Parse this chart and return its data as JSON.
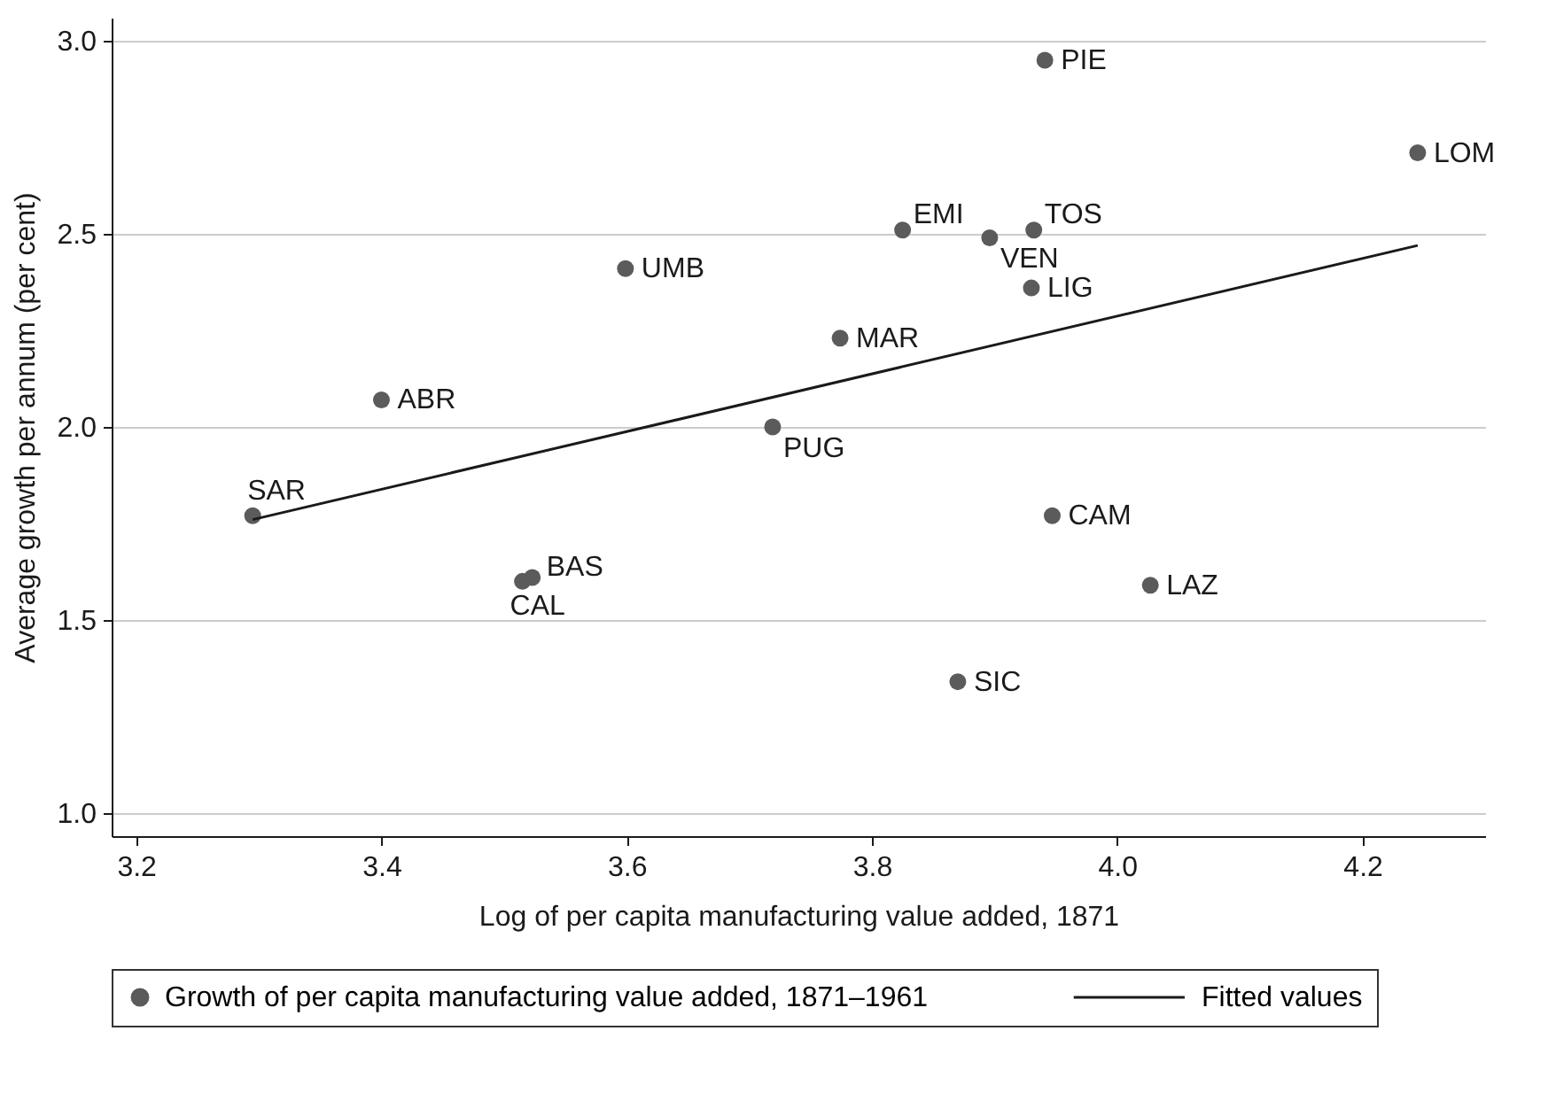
{
  "chart_data": {
    "type": "scatter",
    "xlabel": "Log of per capita manufacturing value added, 1871",
    "ylabel": "Average growth per annum (per cent)",
    "xlim": [
      3.18,
      4.3
    ],
    "ylim": [
      0.94,
      3.06
    ],
    "xticks": [
      3.2,
      3.4,
      3.6,
      3.8,
      {
        "value": 4,
        "label": "4.0"
      },
      4.2
    ],
    "yticks": [
      {
        "value": 1,
        "label": "1.0"
      },
      1.5,
      {
        "value": 2,
        "label": "2.0"
      },
      2.5,
      {
        "value": 3,
        "label": "3.0"
      }
    ],
    "grid": "y",
    "legend": "bottom",
    "series": [
      {
        "name": "Growth of per capita manufacturing value added, 1871–1961",
        "marker": "circle",
        "color": "#5b5b5b",
        "x": [
          3.295,
          3.4,
          3.599,
          3.515,
          3.523,
          3.719,
          3.774,
          3.825,
          3.896,
          3.932,
          3.93,
          3.941,
          3.947,
          3.87,
          4.027,
          4.245
        ],
        "values": [
          1.77,
          2.07,
          2.41,
          1.6,
          1.61,
          2.0,
          2.23,
          2.51,
          2.49,
          2.51,
          2.36,
          2.95,
          1.77,
          1.34,
          1.59,
          2.71
        ]
      },
      {
        "name": "Fitted values",
        "type": "line",
        "color": "#1a1a1a",
        "x": [
          3.295,
          4.245
        ],
        "values": [
          1.76,
          2.47
        ]
      }
    ],
    "annotations": [
      {
        "text": "SAR",
        "x": 3.295,
        "y": 1.77
      },
      {
        "text": "ABR",
        "x": 3.4,
        "y": 2.07
      },
      {
        "text": "UMB",
        "x": 3.599,
        "y": 2.41
      },
      {
        "text": "CAL",
        "x": 3.515,
        "y": 1.6
      },
      {
        "text": "BAS",
        "x": 3.523,
        "y": 1.61
      },
      {
        "text": "PUG",
        "x": 3.719,
        "y": 2.0
      },
      {
        "text": "MAR",
        "x": 3.774,
        "y": 2.23
      },
      {
        "text": "EMI",
        "x": 3.825,
        "y": 2.51
      },
      {
        "text": "VEN",
        "x": 3.896,
        "y": 2.49
      },
      {
        "text": "TOS",
        "x": 3.932,
        "y": 2.51
      },
      {
        "text": "LIG",
        "x": 3.93,
        "y": 2.36
      },
      {
        "text": "PIE",
        "x": 3.941,
        "y": 2.95
      },
      {
        "text": "CAM",
        "x": 3.947,
        "y": 1.77
      },
      {
        "text": "SIC",
        "x": 3.87,
        "y": 1.34
      },
      {
        "text": "LAZ",
        "x": 4.027,
        "y": 1.59
      },
      {
        "text": "LOM",
        "x": 4.245,
        "y": 2.71
      }
    ]
  }
}
